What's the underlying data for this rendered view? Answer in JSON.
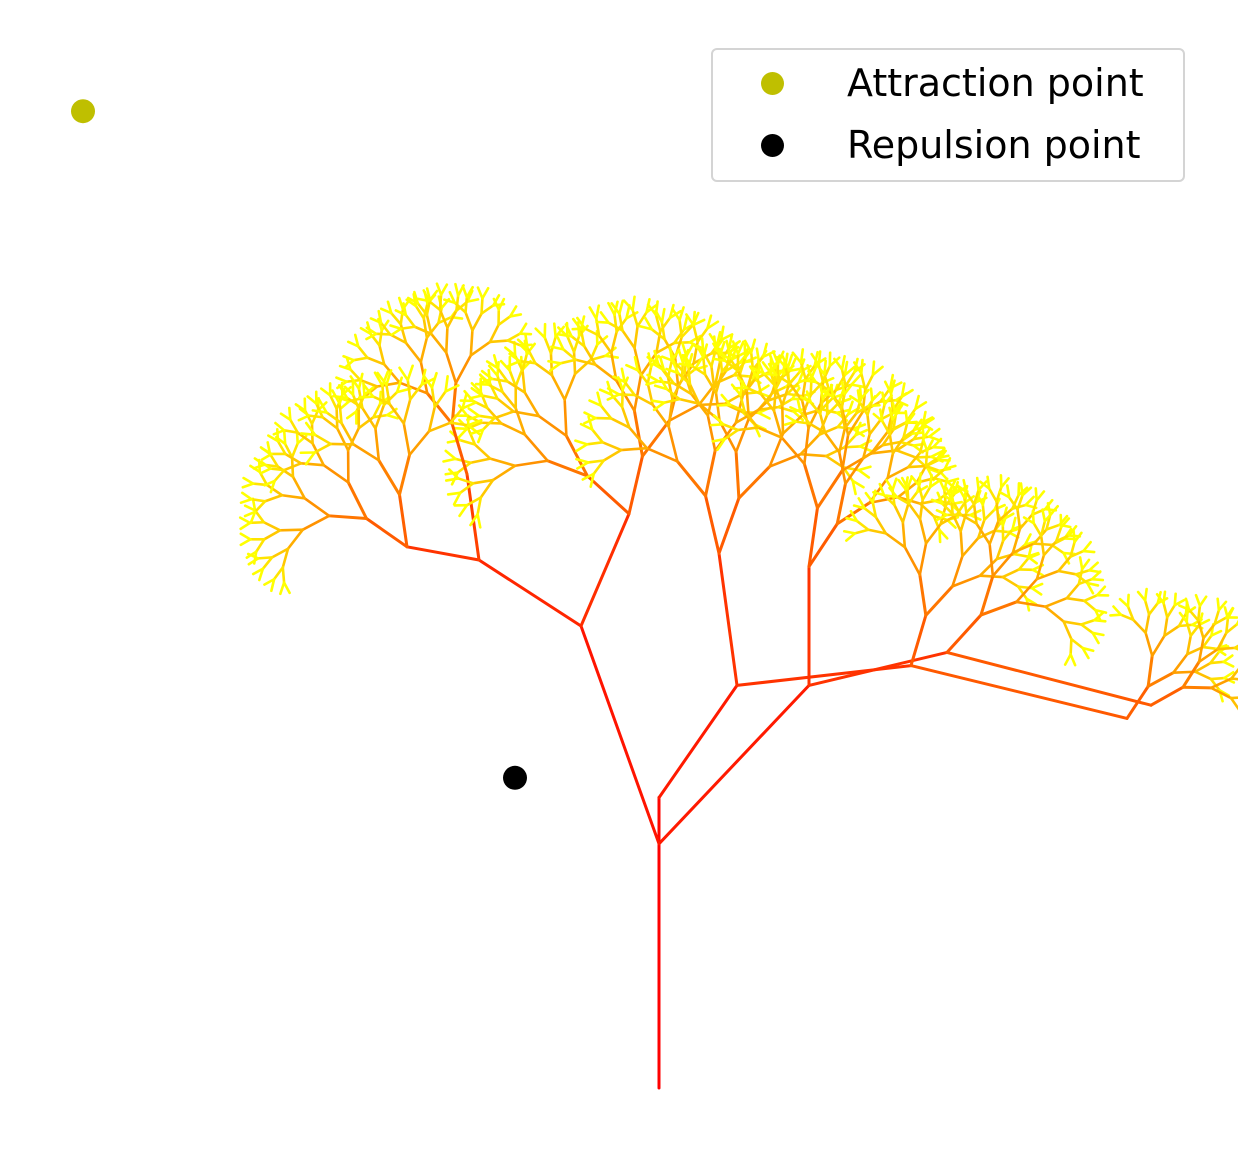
{
  "chart_data": {
    "type": "scatter",
    "description_free": true,
    "title": "",
    "xlabel": "",
    "ylabel": "",
    "axes_visible": false,
    "grid": false,
    "legend_placement": "top-right",
    "xlim": [
      -1.0,
      1.0
    ],
    "ylim": [
      -0.05,
      1.55
    ],
    "colors": {
      "attraction": "#bfbf00",
      "repulsion": "#000000",
      "branch_base": "#ff0000",
      "branch_tip": "#ffff00"
    },
    "series": [
      {
        "name": "Attraction point",
        "marker": "circle",
        "color": "#bfbf00",
        "points": [
          [
            -0.96,
            1.48
          ]
        ]
      },
      {
        "name": "Repulsion point",
        "marker": "circle",
        "color": "#000000",
        "points": [
          [
            -0.24,
            0.47
          ]
        ]
      }
    ],
    "tree": {
      "trunk_base": [
        0.0,
        0.0
      ],
      "main_nodes": {
        "fork_a": [
          0.0,
          0.37
        ],
        "fork_b": [
          0.0,
          0.44
        ],
        "left_hub": [
          -0.13,
          0.7
        ],
        "left_mid": [
          -0.3,
          0.8
        ],
        "left_outer": [
          -0.42,
          0.82
        ],
        "mid_top": [
          -0.32,
          1.03
        ],
        "mid_top2": [
          -0.12,
          0.99
        ],
        "right_hub1": [
          0.13,
          0.61
        ],
        "right_hub2": [
          0.25,
          0.61
        ],
        "right_a": [
          0.1,
          0.81
        ],
        "right_b": [
          0.25,
          0.79
        ],
        "right_c": [
          0.42,
          0.64
        ],
        "right_d": [
          0.48,
          0.66
        ]
      }
    }
  }
}
